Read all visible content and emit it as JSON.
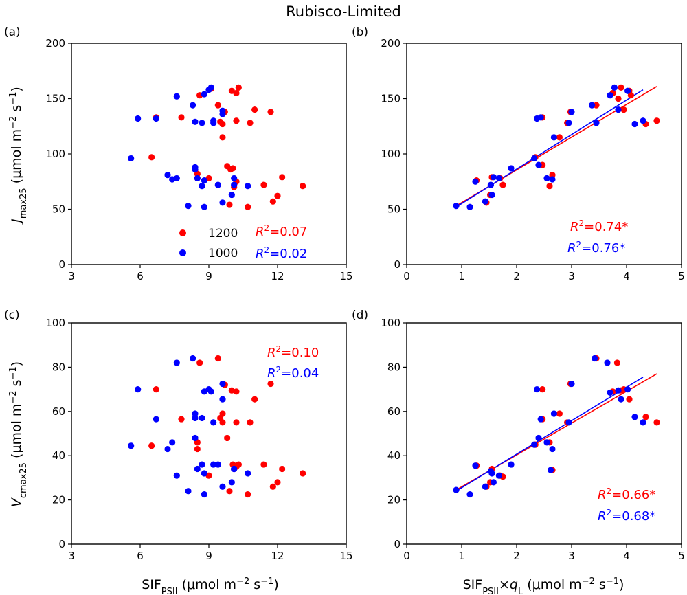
{
  "title": "Rubisco-Limited",
  "colors": {
    "red": "#ff0000",
    "blue": "#0000ff"
  },
  "legend": {
    "red_label": "1200",
    "blue_label": "1000"
  },
  "labels": {
    "sif": "SIF",
    "psii_sub": "PSII",
    "unit_close": " s",
    "jmax": "J",
    "jmax_sub": "max25",
    "vcmax": "V",
    "vcmax_sub": "cmax25",
    "unit_open": " (μmol m",
    "neg2": "−2",
    "neg1": "−1",
    "close_paren": ")",
    "times": "×",
    "q": "q",
    "l_sub": "L"
  },
  "chart_data": [
    {
      "panel": "(a)",
      "type": "scatter",
      "xlim": [
        3,
        15
      ],
      "ylim": [
        0,
        200
      ],
      "xticks": [
        "3",
        "6",
        "9",
        "12",
        "15"
      ],
      "yticks": [
        "0",
        "50",
        "100",
        "150",
        "200"
      ],
      "ylabel": "Jmax25 (μmol m−2 s−1)",
      "xlabel": "",
      "r2": {
        "red": "0.07",
        "blue": "0.02",
        "suffix": ""
      },
      "series": [
        {
          "name": "1200",
          "color": "red",
          "points": [
            [
              6.5,
              97
            ],
            [
              6.7,
              133
            ],
            [
              7.8,
              133
            ],
            [
              8.5,
              78
            ],
            [
              8.5,
              82
            ],
            [
              8.6,
              153
            ],
            [
              9.0,
              78
            ],
            [
              9.1,
              159
            ],
            [
              9.4,
              144
            ],
            [
              9.5,
              129
            ],
            [
              9.6,
              127
            ],
            [
              9.6,
              115
            ],
            [
              9.7,
              138
            ],
            [
              9.8,
              89
            ],
            [
              9.9,
              54
            ],
            [
              9.95,
              86
            ],
            [
              10.0,
              157
            ],
            [
              10.05,
              87
            ],
            [
              10.1,
              70
            ],
            [
              10.2,
              75
            ],
            [
              10.2,
              155
            ],
            [
              10.2,
              130
            ],
            [
              10.3,
              160
            ],
            [
              10.7,
              52
            ],
            [
              10.8,
              128
            ],
            [
              11.0,
              140
            ],
            [
              11.4,
              72
            ],
            [
              11.7,
              138
            ],
            [
              11.8,
              57
            ],
            [
              12.0,
              62
            ],
            [
              12.2,
              79
            ],
            [
              13.1,
              71
            ]
          ]
        },
        {
          "name": "1000",
          "color": "blue",
          "points": [
            [
              5.6,
              96
            ],
            [
              5.9,
              132
            ],
            [
              6.7,
              132
            ],
            [
              7.2,
              81
            ],
            [
              7.4,
              77
            ],
            [
              7.6,
              78
            ],
            [
              7.6,
              152
            ],
            [
              8.1,
              53
            ],
            [
              8.3,
              144
            ],
            [
              8.4,
              86
            ],
            [
              8.4,
              88
            ],
            [
              8.4,
              129
            ],
            [
              8.5,
              78
            ],
            [
              8.7,
              128
            ],
            [
              8.7,
              71
            ],
            [
              8.8,
              52
            ],
            [
              8.8,
              154
            ],
            [
              8.8,
              76
            ],
            [
              9.0,
              158
            ],
            [
              9.1,
              160
            ],
            [
              9.2,
              130
            ],
            [
              9.2,
              128
            ],
            [
              9.4,
              72
            ],
            [
              9.6,
              56
            ],
            [
              9.6,
              139
            ],
            [
              9.6,
              136
            ],
            [
              10.0,
              63
            ],
            [
              10.1,
              78
            ],
            [
              10.1,
              72
            ],
            [
              10.7,
              71
            ]
          ]
        }
      ]
    },
    {
      "panel": "(b)",
      "type": "scatter",
      "xlim": [
        0,
        5
      ],
      "ylim": [
        0,
        200
      ],
      "xticks": [
        "0",
        "1",
        "2",
        "3",
        "4",
        "5"
      ],
      "yticks": [
        "0",
        "50",
        "100",
        "150",
        "200"
      ],
      "xlabel": "",
      "ylabel": "",
      "r2": {
        "red": "0.74",
        "blue": "0.76",
        "suffix": "*"
      },
      "fits": {
        "red": [
          [
            0.9,
            53
          ],
          [
            4.55,
            161
          ]
        ],
        "blue": [
          [
            0.9,
            52
          ],
          [
            4.3,
            158
          ]
        ]
      },
      "series": [
        {
          "name": "1200",
          "color": "red",
          "points": [
            [
              1.27,
              76
            ],
            [
              1.45,
              56
            ],
            [
              1.52,
              63
            ],
            [
              1.55,
              79
            ],
            [
              1.7,
              78
            ],
            [
              1.75,
              72
            ],
            [
              2.34,
              97
            ],
            [
              2.47,
              133
            ],
            [
              2.47,
              90
            ],
            [
              2.6,
              71
            ],
            [
              2.65,
              81
            ],
            [
              2.78,
              115
            ],
            [
              2.92,
              128
            ],
            [
              2.98,
              138
            ],
            [
              3.45,
              144
            ],
            [
              3.75,
              155
            ],
            [
              3.9,
              160
            ],
            [
              3.95,
              140
            ],
            [
              4.05,
              157
            ],
            [
              4.08,
              153
            ],
            [
              4.35,
              127
            ],
            [
              4.55,
              130
            ],
            [
              3.85,
              150
            ]
          ]
        },
        {
          "name": "1000",
          "color": "blue",
          "points": [
            [
              0.9,
              53
            ],
            [
              1.15,
              52
            ],
            [
              1.25,
              75
            ],
            [
              1.43,
              57
            ],
            [
              1.53,
              72
            ],
            [
              1.55,
              63
            ],
            [
              1.58,
              79
            ],
            [
              1.68,
              78
            ],
            [
              1.9,
              87
            ],
            [
              2.32,
              96
            ],
            [
              2.37,
              132
            ],
            [
              2.4,
              90
            ],
            [
              2.44,
              133
            ],
            [
              2.55,
              78
            ],
            [
              2.65,
              77
            ],
            [
              2.68,
              115
            ],
            [
              2.95,
              128
            ],
            [
              3.0,
              138
            ],
            [
              3.37,
              144
            ],
            [
              3.45,
              128
            ],
            [
              3.7,
              153
            ],
            [
              3.78,
              160
            ],
            [
              3.85,
              140
            ],
            [
              4.02,
              157
            ],
            [
              4.15,
              127
            ],
            [
              4.3,
              130
            ]
          ]
        }
      ]
    },
    {
      "panel": "(c)",
      "type": "scatter",
      "xlim": [
        3,
        15
      ],
      "ylim": [
        0,
        100
      ],
      "xticks": [
        "3",
        "6",
        "9",
        "12",
        "15"
      ],
      "yticks": [
        "0",
        "20",
        "40",
        "60",
        "80",
        "100"
      ],
      "ylabel": "Vcmax25 (μmol m−2 s−1)",
      "xlabel": "SIFPSII (μmol m−2 s−1)",
      "r2": {
        "red": "0.10",
        "blue": "0.04",
        "suffix": ""
      },
      "series": [
        {
          "name": "1200",
          "color": "red",
          "points": [
            [
              6.5,
              44.5
            ],
            [
              6.7,
              70
            ],
            [
              7.8,
              56.5
            ],
            [
              8.5,
              43
            ],
            [
              8.5,
              46
            ],
            [
              8.6,
              82
            ],
            [
              9.0,
              31
            ],
            [
              9.4,
              84
            ],
            [
              9.5,
              57
            ],
            [
              9.6,
              59
            ],
            [
              9.6,
              55
            ],
            [
              9.7,
              72
            ],
            [
              9.8,
              48
            ],
            [
              9.9,
              24
            ],
            [
              10.0,
              69.5
            ],
            [
              10.05,
              36
            ],
            [
              10.1,
              34
            ],
            [
              10.2,
              35
            ],
            [
              10.2,
              69
            ],
            [
              10.2,
              55
            ],
            [
              10.3,
              36
            ],
            [
              10.7,
              22.5
            ],
            [
              10.8,
              55
            ],
            [
              11.0,
              65.5
            ],
            [
              11.4,
              36
            ],
            [
              11.7,
              72.5
            ],
            [
              11.8,
              26
            ],
            [
              12.0,
              28
            ],
            [
              12.2,
              34
            ],
            [
              13.1,
              32
            ]
          ]
        },
        {
          "name": "1000",
          "color": "blue",
          "points": [
            [
              5.6,
              44.5
            ],
            [
              5.9,
              70
            ],
            [
              6.7,
              56.5
            ],
            [
              7.2,
              43
            ],
            [
              7.4,
              46
            ],
            [
              7.6,
              31
            ],
            [
              7.6,
              82
            ],
            [
              8.1,
              24
            ],
            [
              8.3,
              84
            ],
            [
              8.4,
              59
            ],
            [
              8.4,
              48
            ],
            [
              8.4,
              57
            ],
            [
              8.5,
              34
            ],
            [
              8.7,
              57
            ],
            [
              8.7,
              36
            ],
            [
              8.8,
              22.5
            ],
            [
              8.8,
              69
            ],
            [
              8.8,
              32
            ],
            [
              9.0,
              70
            ],
            [
              9.1,
              69
            ],
            [
              9.2,
              55
            ],
            [
              9.2,
              36
            ],
            [
              9.4,
              36
            ],
            [
              9.6,
              26
            ],
            [
              9.6,
              72.5
            ],
            [
              9.6,
              65.5
            ],
            [
              10.0,
              28
            ],
            [
              10.1,
              34
            ],
            [
              10.1,
              34
            ],
            [
              10.7,
              32
            ]
          ]
        }
      ]
    },
    {
      "panel": "(d)",
      "type": "scatter",
      "xlim": [
        0,
        5
      ],
      "ylim": [
        0,
        100
      ],
      "xticks": [
        "0",
        "1",
        "2",
        "3",
        "4",
        "5"
      ],
      "yticks": [
        "0",
        "20",
        "40",
        "60",
        "80",
        "100"
      ],
      "ylabel": "",
      "xlabel": "SIFPSII×qL (μmol m−2 s−1)",
      "r2": {
        "red": "0.66",
        "blue": "0.68",
        "suffix": "*"
      },
      "fits": {
        "red": [
          [
            0.9,
            24.5
          ],
          [
            4.55,
            77
          ]
        ],
        "blue": [
          [
            0.9,
            24
          ],
          [
            4.3,
            75.5
          ]
        ]
      },
      "series": [
        {
          "name": "1200",
          "color": "red",
          "points": [
            [
              1.27,
              35.5
            ],
            [
              1.45,
              26
            ],
            [
              1.52,
              28
            ],
            [
              1.55,
              34
            ],
            [
              1.7,
              31
            ],
            [
              1.75,
              30.5
            ],
            [
              2.34,
              45
            ],
            [
              2.47,
              70
            ],
            [
              2.47,
              56.5
            ],
            [
              2.6,
              46
            ],
            [
              2.65,
              33.5
            ],
            [
              2.78,
              59
            ],
            [
              2.92,
              55
            ],
            [
              2.98,
              72.5
            ],
            [
              3.45,
              84
            ],
            [
              3.75,
              69
            ],
            [
              3.83,
              82
            ],
            [
              3.95,
              70
            ],
            [
              4.05,
              65.5
            ],
            [
              3.9,
              69.5
            ],
            [
              4.35,
              57.5
            ],
            [
              4.55,
              55
            ]
          ]
        },
        {
          "name": "1000",
          "color": "blue",
          "points": [
            [
              0.9,
              24.5
            ],
            [
              1.15,
              22.5
            ],
            [
              1.25,
              35.5
            ],
            [
              1.43,
              26
            ],
            [
              1.53,
              33
            ],
            [
              1.55,
              32
            ],
            [
              1.58,
              28
            ],
            [
              1.68,
              31
            ],
            [
              1.9,
              36
            ],
            [
              2.32,
              45
            ],
            [
              2.37,
              70
            ],
            [
              2.4,
              48
            ],
            [
              2.44,
              56.5
            ],
            [
              2.55,
              46
            ],
            [
              2.62,
              33.5
            ],
            [
              2.65,
              43
            ],
            [
              2.68,
              59
            ],
            [
              2.95,
              55
            ],
            [
              3.0,
              72.5
            ],
            [
              3.42,
              84
            ],
            [
              3.65,
              82
            ],
            [
              3.7,
              68.5
            ],
            [
              3.85,
              69.5
            ],
            [
              3.9,
              65.5
            ],
            [
              4.02,
              70
            ],
            [
              4.15,
              57.5
            ],
            [
              4.3,
              55
            ]
          ]
        }
      ]
    }
  ]
}
